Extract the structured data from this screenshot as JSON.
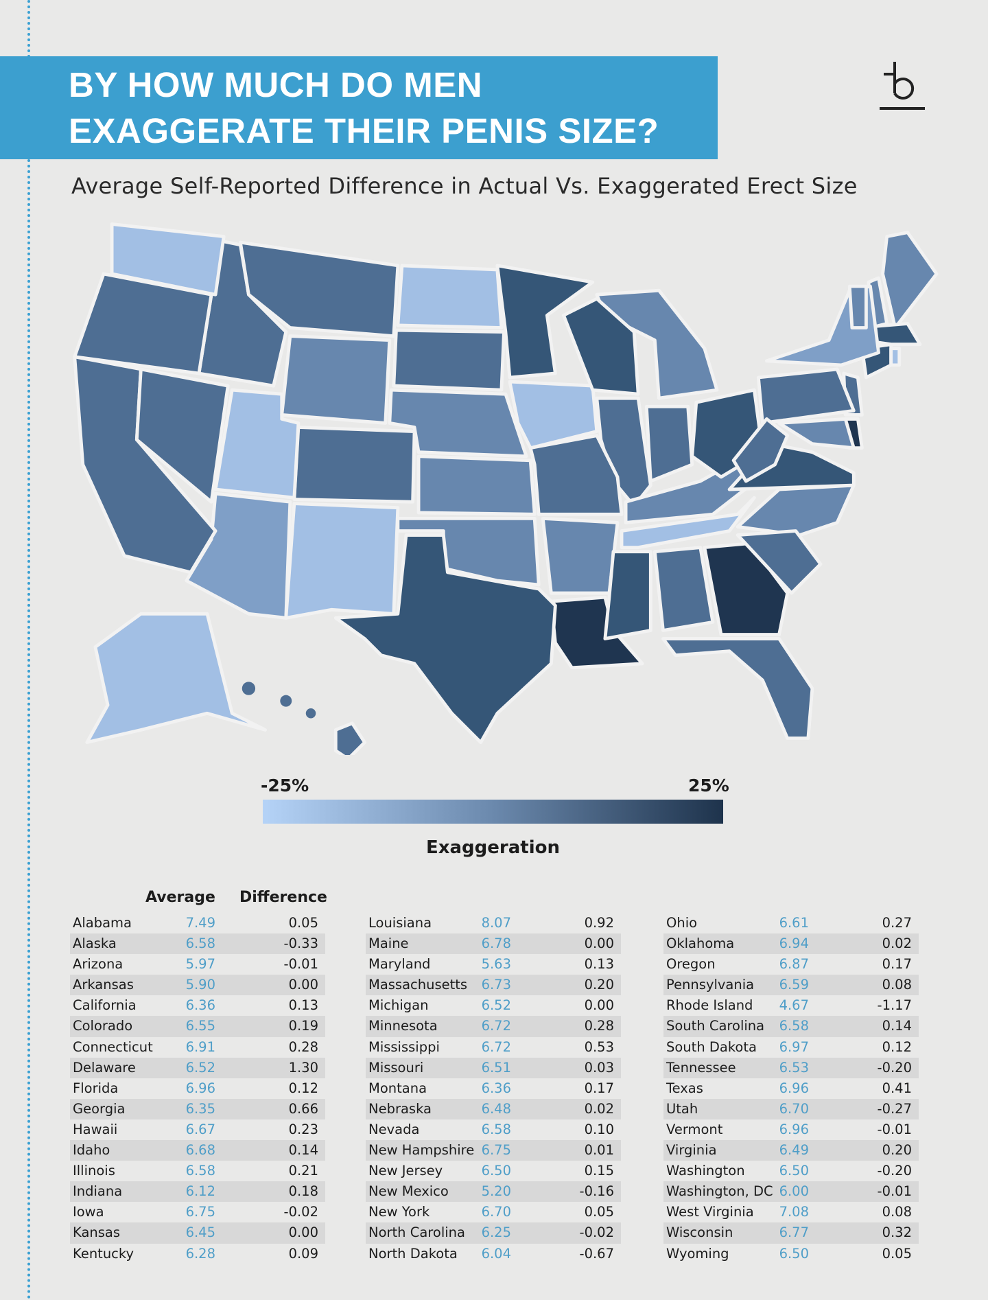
{
  "title_line1": "BY HOW MUCH DO MEN",
  "title_line2": "EXAGGERATE THEIR PENIS SIZE?",
  "subtitle": "Average Self-Reported Difference in Actual Vs. Exaggerated Erect Size",
  "logo_text": "b",
  "chart_data": {
    "type": "table",
    "title": "BY HOW MUCH DO MEN EXAGGERATE THEIR PENIS SIZE?",
    "subtitle": "Average Self-Reported Difference in Actual Vs. Exaggerated Erect Size",
    "legend": {
      "min_label": "-25%",
      "max_label": "25%",
      "title": "Exaggeration",
      "colors": [
        "#b5d3f7",
        "#1e334c"
      ]
    },
    "columns": [
      "",
      "Average",
      "Difference"
    ],
    "map_shades": {
      "1": "#a2bfe4",
      "2": "#7f9fc7",
      "3": "#6787ae",
      "4": "#4e6e93",
      "5": "#355677",
      "6": "#1f3550"
    },
    "rows": [
      {
        "state": "Alabama",
        "average": "7.49",
        "difference": "0.05",
        "shade": 4
      },
      {
        "state": "Alaska",
        "average": "6.58",
        "difference": "-0.33",
        "shade": 1
      },
      {
        "state": "Arizona",
        "average": "5.97",
        "difference": "-0.01",
        "shade": 2
      },
      {
        "state": "Arkansas",
        "average": "5.90",
        "difference": "0.00",
        "shade": 3
      },
      {
        "state": "California",
        "average": "6.36",
        "difference": "0.13",
        "shade": 4
      },
      {
        "state": "Colorado",
        "average": "6.55",
        "difference": "0.19",
        "shade": 4
      },
      {
        "state": "Connecticut",
        "average": "6.91",
        "difference": "0.28",
        "shade": 5
      },
      {
        "state": "Delaware",
        "average": "6.52",
        "difference": "1.30",
        "shade": 6
      },
      {
        "state": "Florida",
        "average": "6.96",
        "difference": "0.12",
        "shade": 4
      },
      {
        "state": "Georgia",
        "average": "6.35",
        "difference": "0.66",
        "shade": 6
      },
      {
        "state": "Hawaii",
        "average": "6.67",
        "difference": "0.23",
        "shade": 4
      },
      {
        "state": "Idaho",
        "average": "6.68",
        "difference": "0.14",
        "shade": 4
      },
      {
        "state": "Illinois",
        "average": "6.58",
        "difference": "0.21",
        "shade": 4
      },
      {
        "state": "Indiana",
        "average": "6.12",
        "difference": "0.18",
        "shade": 4
      },
      {
        "state": "Iowa",
        "average": "6.75",
        "difference": "-0.02",
        "shade": 1
      },
      {
        "state": "Kansas",
        "average": "6.45",
        "difference": "0.00",
        "shade": 3
      },
      {
        "state": "Kentucky",
        "average": "6.28",
        "difference": "0.09",
        "shade": 3
      },
      {
        "state": "Louisiana",
        "average": "8.07",
        "difference": "0.92",
        "shade": 6
      },
      {
        "state": "Maine",
        "average": "6.78",
        "difference": "0.00",
        "shade": 3
      },
      {
        "state": "Maryland",
        "average": "5.63",
        "difference": "0.13",
        "shade": 3
      },
      {
        "state": "Massachusetts",
        "average": "6.73",
        "difference": "0.20",
        "shade": 5
      },
      {
        "state": "Michigan",
        "average": "6.52",
        "difference": "0.00",
        "shade": 3
      },
      {
        "state": "Minnesota",
        "average": "6.72",
        "difference": "0.28",
        "shade": 5
      },
      {
        "state": "Mississippi",
        "average": "6.72",
        "difference": "0.53",
        "shade": 5
      },
      {
        "state": "Missouri",
        "average": "6.51",
        "difference": "0.03",
        "shade": 4
      },
      {
        "state": "Montana",
        "average": "6.36",
        "difference": "0.17",
        "shade": 4
      },
      {
        "state": "Nebraska",
        "average": "6.48",
        "difference": "0.02",
        "shade": 3
      },
      {
        "state": "Nevada",
        "average": "6.58",
        "difference": "0.10",
        "shade": 4
      },
      {
        "state": "New Hampshire",
        "average": "6.75",
        "difference": "0.01",
        "shade": 3
      },
      {
        "state": "New Jersey",
        "average": "6.50",
        "difference": "0.15",
        "shade": 4
      },
      {
        "state": "New Mexico",
        "average": "5.20",
        "difference": "-0.16",
        "shade": 1
      },
      {
        "state": "New York",
        "average": "6.70",
        "difference": "0.05",
        "shade": 2
      },
      {
        "state": "North Carolina",
        "average": "6.25",
        "difference": "-0.02",
        "shade": 3
      },
      {
        "state": "North Dakota",
        "average": "6.04",
        "difference": "-0.67",
        "shade": 1
      },
      {
        "state": "Ohio",
        "average": "6.61",
        "difference": "0.27",
        "shade": 5
      },
      {
        "state": "Oklahoma",
        "average": "6.94",
        "difference": "0.02",
        "shade": 3
      },
      {
        "state": "Oregon",
        "average": "6.87",
        "difference": "0.17",
        "shade": 4
      },
      {
        "state": "Pennsylvania",
        "average": "6.59",
        "difference": "0.08",
        "shade": 4
      },
      {
        "state": "Rhode Island",
        "average": "4.67",
        "difference": "-1.17",
        "shade": 1
      },
      {
        "state": "South Carolina",
        "average": "6.58",
        "difference": "0.14",
        "shade": 4
      },
      {
        "state": "South Dakota",
        "average": "6.97",
        "difference": "0.12",
        "shade": 4
      },
      {
        "state": "Tennessee",
        "average": "6.53",
        "difference": "-0.20",
        "shade": 1
      },
      {
        "state": "Texas",
        "average": "6.96",
        "difference": "0.41",
        "shade": 5
      },
      {
        "state": "Utah",
        "average": "6.70",
        "difference": "-0.27",
        "shade": 1
      },
      {
        "state": "Vermont",
        "average": "6.96",
        "difference": "-0.01",
        "shade": 3
      },
      {
        "state": "Virginia",
        "average": "6.49",
        "difference": "0.20",
        "shade": 5
      },
      {
        "state": "Washington",
        "average": "6.50",
        "difference": "-0.20",
        "shade": 1
      },
      {
        "state": "Washington, DC",
        "average": "6.00",
        "difference": "-0.01"
      },
      {
        "state": "West Virginia",
        "average": "7.08",
        "difference": "0.08",
        "shade": 4
      },
      {
        "state": "Wisconsin",
        "average": "6.77",
        "difference": "0.32",
        "shade": 5
      },
      {
        "state": "Wyoming",
        "average": "6.50",
        "difference": "0.05",
        "shade": 3
      }
    ]
  }
}
